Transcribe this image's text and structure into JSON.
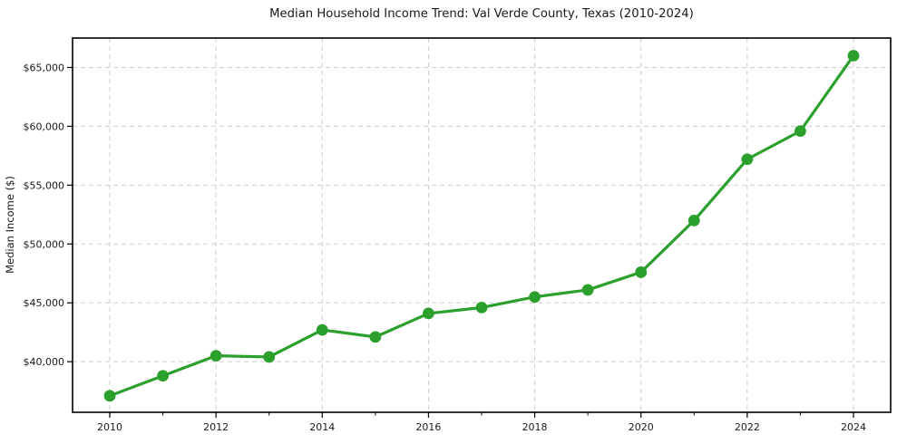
{
  "figure": {
    "background": "#ffffff"
  },
  "colors": {
    "line": "#2ca02c",
    "marker": "#2ca02c",
    "grid": "#cdcdcd",
    "spine": "#000000",
    "tick": "#000000",
    "text": "#1a1a1a"
  },
  "chart_data": {
    "type": "line",
    "title": "Median Household Income Trend: Val Verde County, Texas (2010-2024)",
    "xlabel": "",
    "ylabel": "Median Income ($)",
    "series_name": "Median Household Income",
    "x": [
      2010,
      2011,
      2012,
      2013,
      2014,
      2015,
      2016,
      2017,
      2018,
      2019,
      2020,
      2021,
      2022,
      2023,
      2024
    ],
    "values": [
      37100,
      38800,
      40500,
      40400,
      42700,
      42100,
      44100,
      44600,
      45500,
      46100,
      47600,
      52000,
      57200,
      59600,
      66000
    ],
    "xlim": [
      2009.3,
      2024.7
    ],
    "ylim": [
      35700,
      67500
    ],
    "grid": true,
    "grid_style": "dashed",
    "legend": "none",
    "marker": "circle",
    "yticks": [
      {
        "value": 40000,
        "label": "$40,000"
      },
      {
        "value": 45000,
        "label": "$45,000"
      },
      {
        "value": 50000,
        "label": "$50,000"
      },
      {
        "value": 55000,
        "label": "$55,000"
      },
      {
        "value": 60000,
        "label": "$60,000"
      },
      {
        "value": 65000,
        "label": "$65,000"
      }
    ],
    "xticks": [
      {
        "value": 2010,
        "label": "2010"
      },
      {
        "value": 2012,
        "label": "2012"
      },
      {
        "value": 2014,
        "label": "2014"
      },
      {
        "value": 2016,
        "label": "2016"
      },
      {
        "value": 2018,
        "label": "2018"
      },
      {
        "value": 2020,
        "label": "2020"
      },
      {
        "value": 2022,
        "label": "2022"
      },
      {
        "value": 2024,
        "label": "2024"
      }
    ],
    "x_minor_ticks": [
      2011,
      2013,
      2015,
      2017,
      2019,
      2021,
      2023
    ]
  }
}
